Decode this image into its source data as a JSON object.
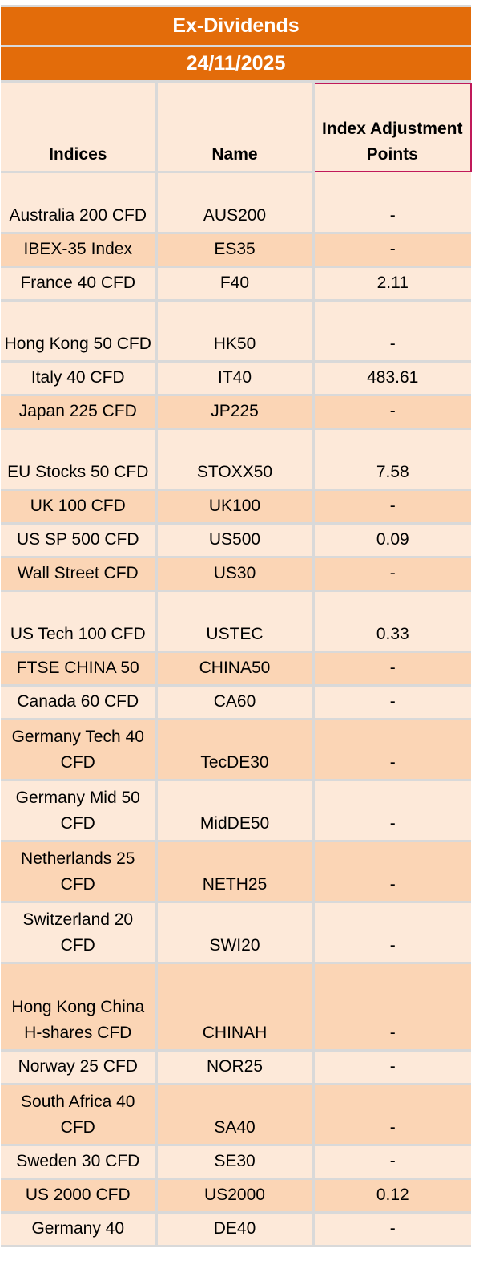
{
  "header": {
    "title": "Ex-Dividends",
    "date": "24/11/2025"
  },
  "table": {
    "columns": [
      "Indices",
      "Name",
      "Index Adjustment Points"
    ],
    "rows": [
      {
        "index": "Australia 200 CFD",
        "name": "AUS200",
        "points": "-"
      },
      {
        "index": "IBEX-35 Index",
        "name": "ES35",
        "points": "-"
      },
      {
        "index": "France 40 CFD",
        "name": "F40",
        "points": "2.11"
      },
      {
        "index": "Hong Kong 50 CFD",
        "name": "HK50",
        "points": "-"
      },
      {
        "index": "Italy 40 CFD",
        "name": "IT40",
        "points": "483.61"
      },
      {
        "index": "Japan 225 CFD",
        "name": "JP225",
        "points": "-"
      },
      {
        "index": "EU Stocks 50 CFD",
        "name": "STOXX50",
        "points": "7.58"
      },
      {
        "index": "UK 100 CFD",
        "name": "UK100",
        "points": "-"
      },
      {
        "index": "US SP 500 CFD",
        "name": "US500",
        "points": "0.09"
      },
      {
        "index": "Wall Street CFD",
        "name": "US30",
        "points": "-"
      },
      {
        "index": "US Tech 100 CFD",
        "name": "USTEC",
        "points": "0.33"
      },
      {
        "index": "FTSE CHINA 50",
        "name": "CHINA50",
        "points": "-"
      },
      {
        "index": "Canada 60 CFD",
        "name": "CA60",
        "points": "-"
      },
      {
        "index": "Germany Tech 40 CFD",
        "name": "TecDE30",
        "points": "-"
      },
      {
        "index": "Germany Mid 50 CFD",
        "name": "MidDE50",
        "points": "-"
      },
      {
        "index": "Netherlands 25 CFD",
        "name": "NETH25",
        "points": "-"
      },
      {
        "index": "Switzerland 20 CFD",
        "name": "SWI20",
        "points": "-"
      },
      {
        "index": "Hong Kong China H-shares CFD",
        "name": "CHINAH",
        "points": "-"
      },
      {
        "index": "Norway 25 CFD",
        "name": "NOR25",
        "points": "-"
      },
      {
        "index": "South Africa 40 CFD",
        "name": "SA40",
        "points": "-"
      },
      {
        "index": "Sweden 30 CFD",
        "name": "SE30",
        "points": "-"
      },
      {
        "index": "US 2000 CFD",
        "name": "US2000",
        "points": "0.12"
      },
      {
        "index": "Germany 40",
        "name": "DE40",
        "points": "-"
      }
    ]
  }
}
